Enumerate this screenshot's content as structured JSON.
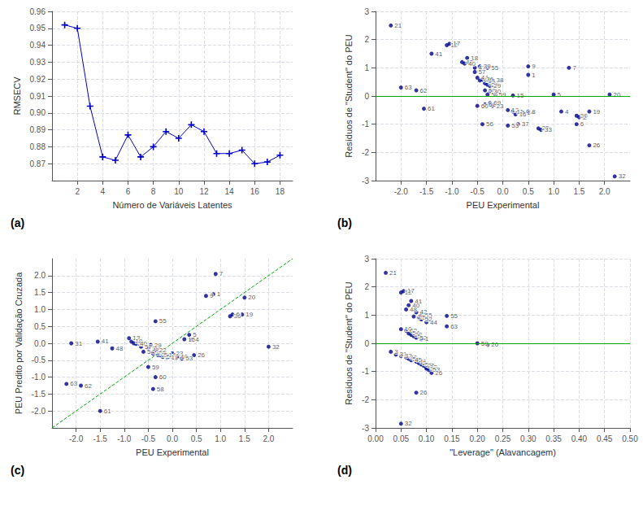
{
  "chart_data": [
    {
      "type": "line",
      "title": "(a)",
      "x": [
        1,
        2,
        3,
        4,
        5,
        6,
        7,
        8,
        9,
        10,
        11,
        12,
        13,
        14,
        15,
        16,
        17,
        18
      ],
      "values": [
        0.952,
        0.95,
        0.904,
        0.874,
        0.872,
        0.887,
        0.874,
        0.88,
        0.889,
        0.885,
        0.893,
        0.889,
        0.876,
        0.876,
        0.878,
        0.87,
        0.871,
        0.875
      ],
      "color": "#0000CC",
      "marker": "plus",
      "xlabel": "Número de Variáveis Latentes",
      "ylabel": "RMSECV",
      "xlim": [
        0,
        19
      ],
      "ylim": [
        0.86,
        0.96
      ],
      "xticks": [
        2,
        4,
        6,
        8,
        10,
        12,
        14,
        16,
        18
      ],
      "yticks": [
        0.87,
        0.88,
        0.89,
        {
          "value": 0.9,
          "label": "0.90"
        },
        0.91,
        0.92,
        0.93,
        0.94,
        0.95,
        0.96
      ],
      "grid": true
    },
    {
      "type": "scatter",
      "title": "(b)",
      "x": [
        -2.2,
        -1.1,
        -1.05,
        -1.4,
        -0.7,
        -0.8,
        -0.75,
        -0.55,
        -0.45,
        -0.3,
        0.5,
        1.3,
        -0.55,
        -0.5,
        -0.45,
        -0.4,
        -0.35,
        -0.3,
        -0.25,
        -0.2,
        0.5,
        -2.0,
        -1.7,
        -0.35,
        -0.3,
        -0.25,
        -0.15,
        0.2,
        1.0,
        2.1,
        -1.55,
        -0.5,
        -0.35,
        -0.25,
        -0.2,
        0.1,
        0.2,
        0.25,
        0.4,
        0.5,
        1.15,
        1.45,
        1.5,
        1.7,
        -0.4,
        0.1,
        0.3,
        1.45,
        0.7,
        0.75,
        1.7,
        2.2
      ],
      "values": [
        2.5,
        1.8,
        1.85,
        1.5,
        1.35,
        1.2,
        1.15,
        1.0,
        1.05,
        1.0,
        1.05,
        1.0,
        0.85,
        0.65,
        0.55,
        0.58,
        0.45,
        0.4,
        0.35,
        0.55,
        0.75,
        0.3,
        0.2,
        0.2,
        0.05,
        0.15,
        0.05,
        0.02,
        0.05,
        0.05,
        -0.45,
        -0.35,
        -0.3,
        -0.25,
        -0.35,
        -0.5,
        -0.55,
        -0.65,
        -0.6,
        -0.55,
        -0.55,
        -0.7,
        -0.75,
        -0.55,
        -1.0,
        -1.05,
        -1.0,
        -1.0,
        -1.15,
        -1.2,
        -1.75,
        -2.85
      ],
      "annotations": [
        "21",
        "12",
        "17",
        "41",
        "18",
        "48",
        "40",
        "47",
        "39",
        "55",
        "9",
        "7",
        "57",
        "44",
        "42",
        "36",
        "54",
        "22",
        "29",
        "38",
        "1",
        "63",
        "62",
        "50",
        "51",
        "30",
        "59",
        "15",
        "5",
        "20",
        "61",
        "60",
        "68",
        "69",
        "23",
        "13",
        "11",
        "16",
        "14",
        "8",
        "4",
        "35",
        "2",
        "19",
        "56",
        "53",
        "37",
        "6",
        "25",
        "33",
        "26",
        "32"
      ],
      "color": "#00008B",
      "marker": "circle",
      "hline": {
        "y": 0,
        "color": "#00AA00"
      },
      "xlabel": "PEU Experimental",
      "ylabel": "Resíduos de \"Student\" do PEU",
      "xlim": [
        -2.5,
        2.5
      ],
      "ylim": [
        -3,
        3
      ],
      "xticks": [
        {
          "value": -2.0,
          "label": "-2.0"
        },
        {
          "value": -1.5,
          "label": "-1.5"
        },
        {
          "value": -1.0,
          "label": "-1.0"
        },
        {
          "value": -0.5,
          "label": "-0.5"
        },
        {
          "value": 0.0,
          "label": "0.0"
        },
        {
          "value": 0.5,
          "label": "0.5"
        },
        {
          "value": 1.0,
          "label": "1.0"
        },
        {
          "value": 1.5,
          "label": "1.5"
        },
        {
          "value": 2.0,
          "label": "2.0"
        }
      ],
      "yticks": [
        -3,
        -2,
        -1,
        0,
        1,
        2,
        3
      ],
      "grid": true
    },
    {
      "type": "scatter",
      "title": "(c)",
      "x": [
        -2.2,
        -1.9,
        -1.5,
        -2.1,
        -1.55,
        -1.25,
        -0.9,
        -0.85,
        -0.8,
        -0.75,
        -0.65,
        -0.6,
        -0.5,
        -0.45,
        -0.4,
        -0.35,
        -0.35,
        -0.3,
        -0.25,
        -0.2,
        -0.15,
        -0.1,
        -0.35,
        -0.5,
        -0.4,
        0.0,
        0.1,
        0.2,
        0.25,
        0.35,
        0.4,
        0.45,
        0.7,
        0.85,
        1.2,
        1.25,
        1.45,
        1.5,
        2.0,
        0.9
      ],
      "values": [
        -1.2,
        -1.25,
        -2.0,
        0.0,
        0.05,
        -0.15,
        0.15,
        0.05,
        0.0,
        -0.02,
        -0.1,
        -0.25,
        -0.15,
        -0.05,
        -0.3,
        -0.2,
        0.65,
        -0.35,
        -0.35,
        -0.4,
        -0.35,
        -0.42,
        -1.0,
        -0.7,
        -1.35,
        -0.3,
        -0.4,
        -0.45,
        0.12,
        0.25,
        0.1,
        -0.35,
        1.4,
        1.45,
        0.8,
        0.85,
        0.85,
        1.35,
        -0.1,
        2.05
      ],
      "annotations": [
        "63",
        "62",
        "61",
        "31",
        "41",
        "48",
        "13",
        "18",
        "27",
        "40",
        "57",
        "54",
        "39",
        "29",
        "25",
        "22",
        "55",
        "28",
        "56",
        "51",
        "14",
        "11",
        "60",
        "59",
        "58",
        "23",
        "10",
        "53",
        "15",
        "5",
        "4",
        "26",
        "9",
        "1",
        "35",
        "6",
        "19",
        "20",
        "32",
        "7"
      ],
      "color": "#00008B",
      "marker": "circle",
      "reference_line": {
        "x": [
          -2.5,
          2.5
        ],
        "y": [
          -2.5,
          2.5
        ],
        "color": "#00AA00",
        "line_style": "dashed"
      },
      "xlabel": "PEU Experimental",
      "ylabel": "PEU Predito por Validação Cruzada",
      "xlim": [
        -2.5,
        2.5
      ],
      "ylim": [
        -2.5,
        2.5
      ],
      "xticks": [
        {
          "value": -2.0,
          "label": "-2.0"
        },
        {
          "value": -1.5,
          "label": "-1.5"
        },
        {
          "value": -1.0,
          "label": "-1.0"
        },
        {
          "value": -0.5,
          "label": "-0.5"
        },
        {
          "value": 0.0,
          "label": "0.0"
        },
        {
          "value": 0.5,
          "label": "0.5"
        },
        {
          "value": 1.0,
          "label": "1.0"
        },
        {
          "value": 1.5,
          "label": "1.5"
        },
        {
          "value": 2.0,
          "label": "2.0"
        }
      ],
      "yticks": [
        {
          "value": -2.0,
          "label": "-2.0"
        },
        {
          "value": -1.5,
          "label": "-1.5"
        },
        {
          "value": -1.0,
          "label": "-1.0"
        },
        {
          "value": -0.5,
          "label": "-0.5"
        },
        {
          "value": 0.0,
          "label": "0.0"
        },
        {
          "value": 0.5,
          "label": "0.5"
        },
        {
          "value": 1.0,
          "label": "1.0"
        },
        {
          "value": 1.5,
          "label": "1.5"
        },
        {
          "value": 2.0,
          "label": "2.0"
        }
      ],
      "grid": true
    },
    {
      "type": "scatter",
      "title": "(d)",
      "x": [
        0.02,
        0.05,
        0.055,
        0.07,
        0.065,
        0.06,
        0.08,
        0.09,
        0.075,
        0.085,
        0.09,
        0.1,
        0.05,
        0.06,
        0.065,
        0.07,
        0.075,
        0.08,
        0.09,
        0.14,
        0.14,
        0.2,
        0.22,
        0.03,
        0.04,
        0.05,
        0.06,
        0.065,
        0.07,
        0.08,
        0.085,
        0.09,
        0.095,
        0.1,
        0.1,
        0.105,
        0.11,
        0.08,
        0.05
      ],
      "values": [
        2.5,
        1.8,
        1.85,
        1.5,
        1.35,
        1.2,
        1.1,
        1.0,
        0.95,
        0.9,
        0.85,
        0.75,
        0.5,
        0.45,
        0.35,
        0.3,
        0.25,
        0.2,
        0.15,
        0.97,
        0.6,
        0.0,
        -0.05,
        -0.3,
        -0.4,
        -0.45,
        -0.5,
        -0.55,
        -0.6,
        -0.65,
        -0.7,
        -0.75,
        -0.8,
        -0.85,
        -0.9,
        -0.95,
        -1.05,
        -1.75,
        -2.85
      ],
      "annotations": [
        "21",
        "12",
        "17",
        "41",
        "40",
        "48",
        "42",
        "55",
        "29",
        "51",
        "52",
        "44",
        "10",
        "62",
        "54",
        "22",
        "5",
        "52",
        "1",
        "55",
        "63",
        "59",
        "20",
        "3",
        "31",
        "37",
        "38",
        "58",
        "45",
        "11",
        "2",
        "53",
        "25",
        "33",
        "37",
        "53",
        "26",
        "26",
        "32"
      ],
      "color": "#00008B",
      "marker": "circle",
      "hline": {
        "y": 0,
        "color": "#00AA00"
      },
      "xlabel": "\"Leverage\" (Alavancagem)",
      "ylabel": "Resíduos de \"Student\" do PEU",
      "xlim": [
        0,
        0.5
      ],
      "ylim": [
        -3,
        3
      ],
      "xticks": [
        {
          "value": 0,
          "label": "0.00"
        },
        0.05,
        {
          "value": 0.1,
          "label": "0.10"
        },
        0.15,
        {
          "value": 0.2,
          "label": "0.20"
        },
        0.25,
        {
          "value": 0.3,
          "label": "0.30"
        },
        0.35,
        {
          "value": 0.4,
          "label": "0.40"
        },
        0.45,
        {
          "value": 0.5,
          "label": "0.50"
        }
      ],
      "yticks": [
        -3,
        -2,
        -1,
        0,
        1,
        2,
        3
      ],
      "grid": true
    }
  ]
}
